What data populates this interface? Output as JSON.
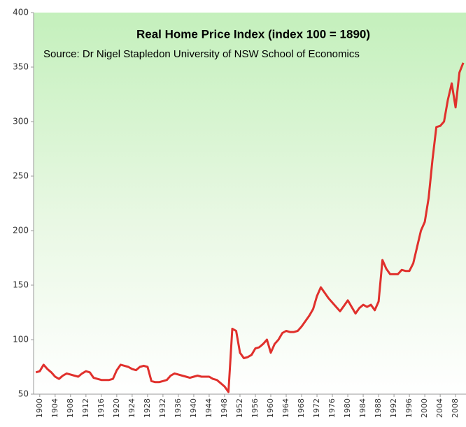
{
  "chart_data": {
    "type": "line",
    "title": "Real Home Price Index (index 100 = 1890)",
    "subtitle": "Source: Dr Nigel Stapledon University of NSW School of Economics",
    "x": [
      1899,
      1900,
      1901,
      1902,
      1903,
      1904,
      1905,
      1906,
      1907,
      1908,
      1909,
      1910,
      1911,
      1912,
      1913,
      1914,
      1915,
      1916,
      1917,
      1918,
      1919,
      1920,
      1921,
      1922,
      1923,
      1924,
      1925,
      1926,
      1927,
      1928,
      1929,
      1930,
      1931,
      1932,
      1933,
      1934,
      1935,
      1936,
      1937,
      1938,
      1939,
      1940,
      1941,
      1942,
      1943,
      1944,
      1945,
      1946,
      1947,
      1948,
      1949,
      1950,
      1951,
      1952,
      1953,
      1954,
      1955,
      1956,
      1957,
      1958,
      1959,
      1960,
      1961,
      1962,
      1963,
      1964,
      1965,
      1966,
      1967,
      1968,
      1969,
      1970,
      1971,
      1972,
      1973,
      1974,
      1975,
      1976,
      1977,
      1978,
      1979,
      1980,
      1981,
      1982,
      1983,
      1984,
      1985,
      1986,
      1987,
      1988,
      1989,
      1990,
      1991,
      1992,
      1993,
      1994,
      1995,
      1996,
      1997,
      1998,
      1999,
      2000,
      2001,
      2002,
      2003,
      2004,
      2005,
      2006,
      2007,
      2008,
      2009,
      2010
    ],
    "series": [
      {
        "name": "Real Home Price Index",
        "color": "#e0302c",
        "values": [
          70,
          71,
          77,
          73,
          70,
          66,
          64,
          67,
          69,
          68,
          67,
          66,
          69,
          71,
          70,
          65,
          64,
          63,
          63,
          63,
          64,
          72,
          77,
          76,
          75,
          73,
          72,
          75,
          76,
          75,
          62,
          61,
          61,
          62,
          63,
          67,
          69,
          68,
          67,
          66,
          65,
          66,
          67,
          66,
          66,
          66,
          64,
          63,
          60,
          57,
          52,
          110,
          108,
          88,
          83,
          84,
          86,
          92,
          93,
          96,
          100,
          88,
          96,
          100,
          106,
          108,
          107,
          107,
          108,
          112,
          117,
          122,
          128,
          140,
          148,
          143,
          138,
          134,
          130,
          126,
          131,
          136,
          130,
          124,
          129,
          132,
          130,
          132,
          127,
          135,
          173,
          165,
          160,
          160,
          160,
          164,
          163,
          163,
          170,
          185,
          200,
          208,
          230,
          265,
          295,
          296,
          300,
          320,
          335,
          313,
          345,
          354
        ]
      }
    ],
    "xlim": [
      1898.4,
      2010.7
    ],
    "xticks": [
      1900,
      1904,
      1908,
      1912,
      1916,
      1920,
      1924,
      1928,
      1932,
      1936,
      1940,
      1944,
      1948,
      1952,
      1956,
      1960,
      1964,
      1968,
      1972,
      1976,
      1980,
      1984,
      1988,
      1992,
      1996,
      2000,
      2004,
      2008
    ],
    "ylim": [
      50,
      400
    ],
    "yticks": [
      50,
      100,
      150,
      200,
      250,
      300,
      350,
      400
    ]
  }
}
